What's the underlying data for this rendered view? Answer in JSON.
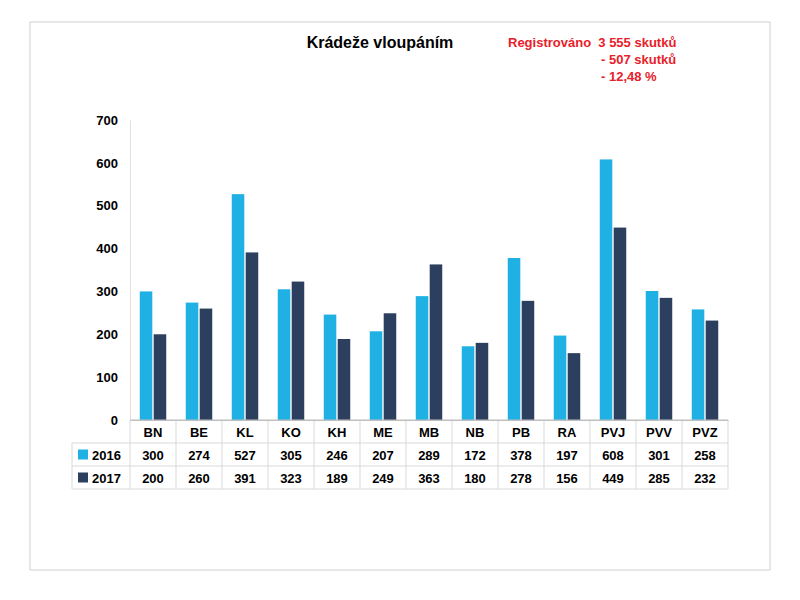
{
  "chart_data": {
    "type": "bar",
    "title": "Krádeže vloupáním",
    "annotations": [
      "Registrováno  3 555 skutků",
      "- 507 skutků",
      "- 12,48 %"
    ],
    "categories": [
      "BN",
      "BE",
      "KL",
      "KO",
      "KH",
      "ME",
      "MB",
      "NB",
      "PB",
      "RA",
      "PVJ",
      "PVV",
      "PVZ"
    ],
    "series": [
      {
        "name": "2016",
        "color": "#1fb0e4",
        "values": [
          300,
          274,
          527,
          305,
          246,
          207,
          289,
          172,
          378,
          197,
          608,
          301,
          258
        ]
      },
      {
        "name": "2017",
        "color": "#2c3f5e",
        "values": [
          200,
          260,
          391,
          323,
          189,
          249,
          363,
          180,
          278,
          156,
          449,
          285,
          232
        ]
      }
    ],
    "ylim": [
      0,
      700
    ],
    "yticks": [
      0,
      100,
      200,
      300,
      400,
      500,
      600,
      700
    ],
    "grid": false
  }
}
